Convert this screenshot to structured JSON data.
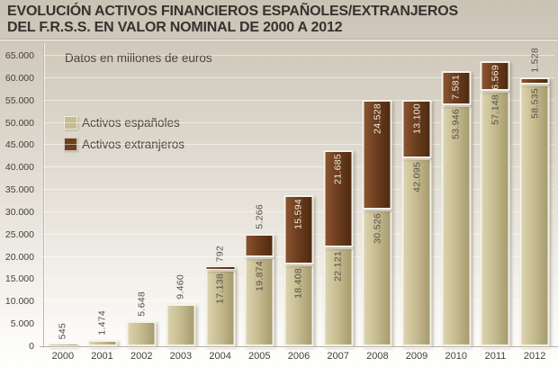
{
  "title": {
    "line1": "EVOLUCIÓN ACTIVOS FINANCIEROS ESPAÑOLES/EXTRANJEROS",
    "line2": "DEL F.R.S.S. EN VALOR NOMINAL DE 2000 A 2012"
  },
  "subtitle": "Datos en millones de euros",
  "legend": {
    "items": [
      {
        "label": "Activos españoles",
        "color": "#c6bc91"
      },
      {
        "label": "Activos extranjeros",
        "color": "#6d3e1f"
      }
    ]
  },
  "colors": {
    "background_top": "#c9c2b5",
    "background_bottom": "#fefefd",
    "title_text": "#35322e",
    "axis_text": "#45403a",
    "label_dark": "#55504a",
    "label_light": "#f2ecdf",
    "espanoles": "#c6bc91",
    "extranjeros": "#6d3e1f"
  },
  "chart_data": {
    "type": "bar",
    "stacked": true,
    "title": "EVOLUCIÓN ACTIVOS FINANCIEROS ESPAÑOLES/EXTRANJEROS DEL F.R.S.S. EN VALOR NOMINAL DE 2000 A 2012",
    "subtitle": "Datos en millones de euros",
    "unit": "millones de euros",
    "xlabel": "",
    "ylabel": "",
    "ylim": [
      0,
      65000
    ],
    "y_tick_step": 5000,
    "y_ticks": [
      "0",
      "5.000",
      "10.000",
      "15.000",
      "20.000",
      "25.000",
      "30.000",
      "35.000",
      "40.000",
      "45.000",
      "50.000",
      "55.000",
      "60.000",
      "65.000"
    ],
    "grid": true,
    "legend_position": "top-left",
    "categories": [
      "2000",
      "2001",
      "2002",
      "2003",
      "2004",
      "2005",
      "2006",
      "2007",
      "2008",
      "2009",
      "2010",
      "2011",
      "2012"
    ],
    "series": [
      {
        "name": "Activos españoles",
        "color": "#c6bc91",
        "values": [
          545,
          1474,
          5648,
          9460,
          17138,
          19874,
          18408,
          22121,
          30526,
          42095,
          53946,
          57148,
          58535
        ],
        "labels": [
          "545",
          "1.474",
          "5.648",
          "9.460",
          "17.138",
          "19.874",
          "18.408",
          "22.121",
          "30.526",
          "42.095",
          "53.946",
          "57.148",
          "58.535"
        ]
      },
      {
        "name": "Activos extranjeros",
        "color": "#6d3e1f",
        "values": [
          0,
          0,
          0,
          0,
          792,
          5266,
          15594,
          21685,
          24528,
          13100,
          7581,
          6569,
          1528
        ],
        "labels": [
          "",
          "",
          "",
          "",
          "792",
          "5.266",
          "15.594",
          "21.685",
          "24.528",
          "13.100",
          "7.581",
          "6.569",
          "1.528"
        ]
      }
    ]
  }
}
